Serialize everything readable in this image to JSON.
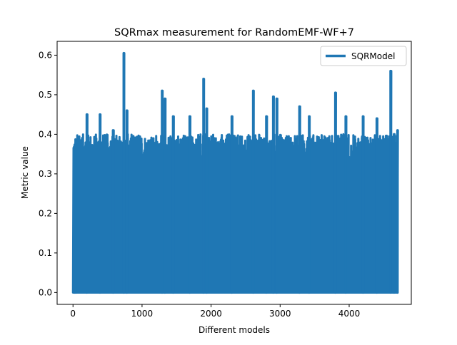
{
  "chart_data": {
    "type": "line",
    "title": "SQRmax measurement for RandomEMF-WF+7",
    "xlabel": "Different models",
    "ylabel": "Metric value",
    "xlim": [
      -230,
      4900
    ],
    "ylim": [
      -0.03,
      0.635
    ],
    "xticks": [
      0,
      1000,
      2000,
      3000,
      4000
    ],
    "yticks": [
      0.0,
      0.1,
      0.2,
      0.3,
      0.4,
      0.5,
      0.6
    ],
    "xtick_labels": [
      "0",
      "1000",
      "2000",
      "3000",
      "4000"
    ],
    "ytick_labels": [
      "0.0",
      "0.1",
      "0.2",
      "0.3",
      "0.4",
      "0.5",
      "0.6"
    ],
    "grid": false,
    "legend_position": "upper right",
    "series": [
      {
        "name": "SQRModel",
        "color": "#1f77b4",
        "x_range": [
          0,
          4700
        ],
        "baseline": 0.0,
        "typical_peak_range": [
          0.3,
          0.4
        ],
        "notable_peaks": [
          {
            "x": 20,
            "y": 0.31
          },
          {
            "x": 40,
            "y": 0.38
          },
          {
            "x": 200,
            "y": 0.45
          },
          {
            "x": 390,
            "y": 0.45
          },
          {
            "x": 580,
            "y": 0.41
          },
          {
            "x": 735,
            "y": 0.605
          },
          {
            "x": 780,
            "y": 0.46
          },
          {
            "x": 1290,
            "y": 0.51
          },
          {
            "x": 1330,
            "y": 0.49
          },
          {
            "x": 1450,
            "y": 0.445
          },
          {
            "x": 1690,
            "y": 0.445
          },
          {
            "x": 1890,
            "y": 0.54
          },
          {
            "x": 1935,
            "y": 0.465
          },
          {
            "x": 2300,
            "y": 0.445
          },
          {
            "x": 2610,
            "y": 0.51
          },
          {
            "x": 2800,
            "y": 0.445
          },
          {
            "x": 2900,
            "y": 0.495
          },
          {
            "x": 2950,
            "y": 0.49
          },
          {
            "x": 3280,
            "y": 0.47
          },
          {
            "x": 3420,
            "y": 0.445
          },
          {
            "x": 3800,
            "y": 0.505
          },
          {
            "x": 3950,
            "y": 0.445
          },
          {
            "x": 4200,
            "y": 0.445
          },
          {
            "x": 4400,
            "y": 0.44
          },
          {
            "x": 4600,
            "y": 0.56
          },
          {
            "x": 4650,
            "y": 0.4
          },
          {
            "x": 4700,
            "y": 0.41
          }
        ]
      }
    ]
  }
}
